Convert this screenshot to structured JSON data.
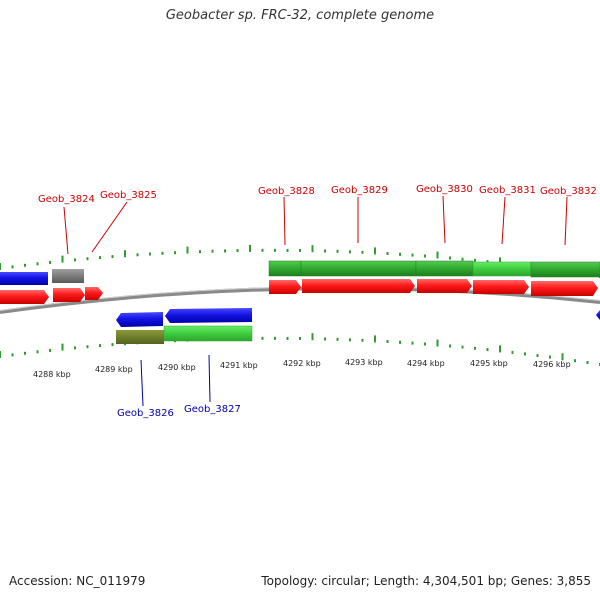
{
  "title": "Geobacter sp. FRC-32, complete genome",
  "footer": {
    "accession": "Accession: NC_011979",
    "summary": "Topology: circular; Length: 4,304,501 bp; Genes: 3,855"
  },
  "colors": {
    "forward_cds": "#ff1a1a",
    "reverse_cds": "#1414e6",
    "forward_label": "#cc0000",
    "reverse_label": "#0000aa",
    "gene_green": "#33bb33",
    "gene_green_light": "#44dd44",
    "gene_olive": "#6b7a2a",
    "gene_gray": "#808080",
    "backbone": "#8a8a8a",
    "tick": "#339933"
  },
  "kbp_labels": [
    "4288 kbp",
    "4289 kbp",
    "4290 kbp",
    "4291 kbp",
    "4292 kbp",
    "4293 kbp",
    "4294 kbp",
    "4295 kbp",
    "4296 kbp"
  ],
  "forward_genes": [
    {
      "label": "Geob_3824"
    },
    {
      "label": "Geob_3825"
    },
    {
      "label": "Geob_3828"
    },
    {
      "label": "Geob_3829"
    },
    {
      "label": "Geob_3830"
    },
    {
      "label": "Geob_3831"
    },
    {
      "label": "Geob_3832"
    }
  ],
  "reverse_genes": [
    {
      "label": "Geob_3826"
    },
    {
      "label": "Geob_3827"
    }
  ]
}
